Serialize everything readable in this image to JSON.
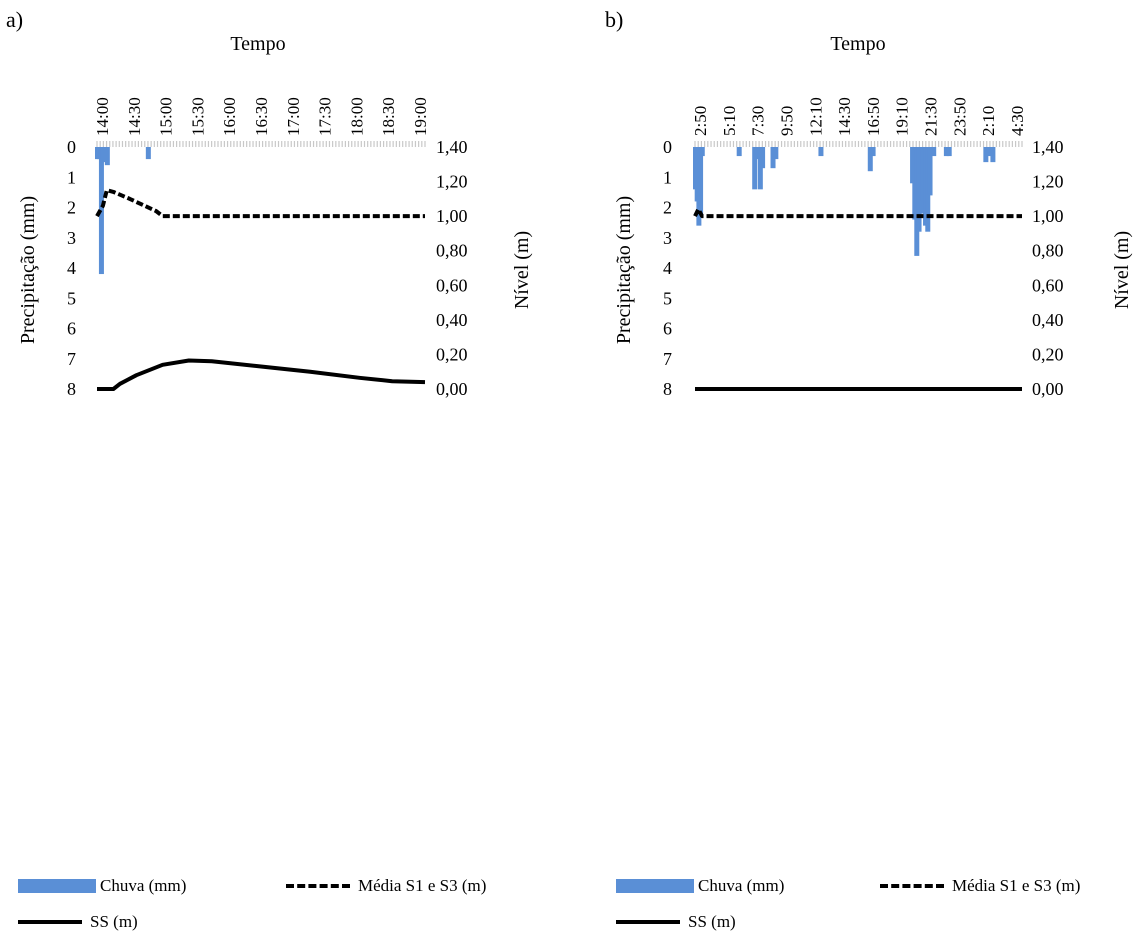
{
  "panels": [
    {
      "label": "a)",
      "top_title": "Tempo"
    },
    {
      "label": "b)",
      "top_title": "Tempo"
    }
  ],
  "legend": {
    "rain": "Chuva (mm)",
    "mean": "Média S1 e S3 (m)",
    "ss": "SS (m)"
  },
  "colors": {
    "rain": "#5a8fd6",
    "lines": "#000000"
  },
  "chart_data": [
    {
      "type": "bar+line",
      "title": "Tempo",
      "xlabel": "Tempo",
      "y_left_label": "Precipitação (mm)",
      "y_right_label": "Nível (m)",
      "x_tick_labels": [
        "14:00",
        "14:30",
        "15:00",
        "15:30",
        "16:00",
        "16:30",
        "17:00",
        "17:30",
        "18:00",
        "18:30",
        "19:00"
      ],
      "x_range": [
        0,
        10
      ],
      "y_left_range": [
        0,
        8
      ],
      "y_left_reversed": true,
      "y_left_ticks": [
        "0",
        "1",
        "2",
        "3",
        "4",
        "5",
        "6",
        "7",
        "8"
      ],
      "y_right_range": [
        0,
        1.4
      ],
      "y_right_ticks": [
        "0,00",
        "0,20",
        "0,40",
        "0,60",
        "0,80",
        "1,00",
        "1,20",
        "1,40"
      ],
      "rain_bars": [
        [
          0.0,
          0.4
        ],
        [
          0.06,
          0.4
        ],
        [
          0.12,
          4.2
        ],
        [
          0.18,
          0.4
        ],
        [
          0.24,
          0.5
        ],
        [
          0.3,
          0.6
        ],
        [
          1.55,
          0.4
        ]
      ],
      "series": [
        {
          "name": "Média S1 e S3 (m)",
          "style": "dashed",
          "points": [
            [
              0.0,
              1.0
            ],
            [
              0.18,
              1.06
            ],
            [
              0.3,
              1.15
            ],
            [
              0.5,
              1.14
            ],
            [
              1.0,
              1.1
            ],
            [
              1.8,
              1.03
            ],
            [
              2.0,
              1.0
            ],
            [
              10.0,
              1.0
            ]
          ]
        },
        {
          "name": "SS (m)",
          "style": "solid",
          "points": [
            [
              0.0,
              0.0
            ],
            [
              0.5,
              0.0
            ],
            [
              0.7,
              0.03
            ],
            [
              1.2,
              0.08
            ],
            [
              2.0,
              0.14
            ],
            [
              2.8,
              0.165
            ],
            [
              3.5,
              0.16
            ],
            [
              5.0,
              0.13
            ],
            [
              6.5,
              0.1
            ],
            [
              8.0,
              0.065
            ],
            [
              9.0,
              0.045
            ],
            [
              10.0,
              0.04
            ]
          ]
        }
      ],
      "grid": false
    },
    {
      "type": "bar+line",
      "title": "Tempo",
      "xlabel": "Tempo",
      "y_left_label": "Precipitação (mm)",
      "y_right_label": "Nível (m)",
      "x_tick_labels": [
        "2:50",
        "5:10",
        "7:30",
        "9:50",
        "12:10",
        "14:30",
        "16:50",
        "19:10",
        "21:30",
        "23:50",
        "2:10",
        "4:30"
      ],
      "x_range": [
        0,
        11.6
      ],
      "y_left_range": [
        0,
        8
      ],
      "y_left_reversed": true,
      "y_left_ticks": [
        "0",
        "1",
        "2",
        "3",
        "4",
        "5",
        "6",
        "7",
        "8"
      ],
      "y_right_range": [
        0,
        1.4
      ],
      "y_right_ticks": [
        "0,00",
        "0,20",
        "0,40",
        "0,60",
        "0,80",
        "1,00",
        "1,20",
        "1,40"
      ],
      "rain_bars": [
        [
          0.0,
          1.4
        ],
        [
          0.06,
          1.8
        ],
        [
          0.12,
          2.6
        ],
        [
          0.18,
          2.3
        ],
        [
          0.24,
          0.3
        ],
        [
          1.55,
          0.3
        ],
        [
          2.1,
          1.4
        ],
        [
          2.2,
          0.4
        ],
        [
          2.3,
          1.4
        ],
        [
          2.38,
          0.7
        ],
        [
          2.75,
          0.7
        ],
        [
          2.85,
          0.4
        ],
        [
          4.45,
          0.3
        ],
        [
          6.2,
          0.8
        ],
        [
          6.3,
          0.3
        ],
        [
          7.7,
          1.2
        ],
        [
          7.78,
          2.4
        ],
        [
          7.85,
          3.6
        ],
        [
          7.93,
          2.8
        ],
        [
          8.0,
          2.2
        ],
        [
          8.08,
          1.8
        ],
        [
          8.16,
          2.6
        ],
        [
          8.24,
          2.8
        ],
        [
          8.32,
          1.6
        ],
        [
          8.45,
          0.3
        ],
        [
          8.9,
          0.3
        ],
        [
          9.0,
          0.3
        ],
        [
          10.3,
          0.5
        ],
        [
          10.4,
          0.3
        ],
        [
          10.55,
          0.5
        ]
      ],
      "series": [
        {
          "name": "Média S1 e S3 (m)",
          "style": "dashed",
          "points": [
            [
              0.0,
              1.0
            ],
            [
              0.12,
              1.04
            ],
            [
              0.25,
              1.0
            ],
            [
              11.6,
              1.0
            ]
          ]
        },
        {
          "name": "SS (m)",
          "style": "solid",
          "points": [
            [
              0.0,
              0.0
            ],
            [
              11.6,
              0.0
            ]
          ]
        }
      ],
      "grid": false
    }
  ]
}
